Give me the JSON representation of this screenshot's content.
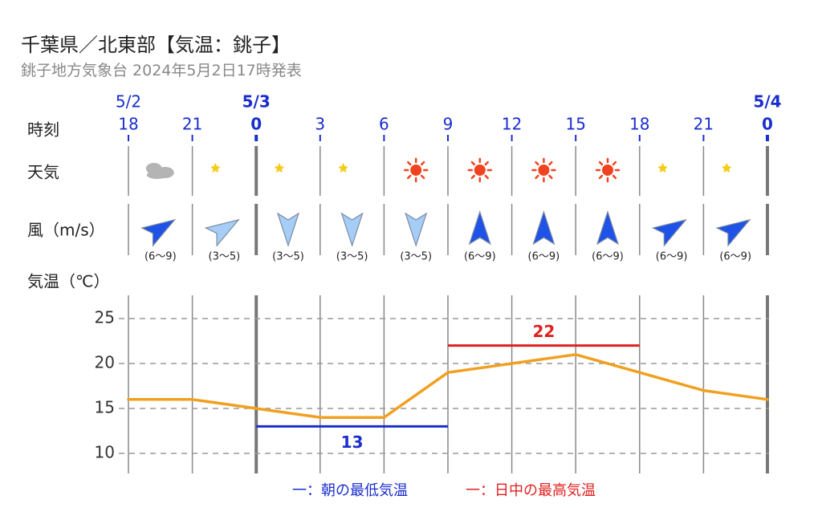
{
  "header": {
    "title": "千葉県／北東部【気温：銚子】",
    "subtitle": "銚子地方気象台 2024年5月2日17時発表"
  },
  "rows": {
    "time": "時刻",
    "weather": "天気",
    "wind": "風（m/s）",
    "temp": "気温（℃）"
  },
  "dates": [
    {
      "label": "5/2",
      "col": 0,
      "bold": false
    },
    {
      "label": "5/3",
      "col": 2,
      "bold": true
    },
    {
      "label": "5/4",
      "col": 10,
      "bold": true
    }
  ],
  "times": [
    "18",
    "21",
    "0",
    "3",
    "6",
    "9",
    "12",
    "15",
    "18",
    "21",
    "0"
  ],
  "day_boundaries": [
    2,
    10
  ],
  "weather": [
    "cloudy-icon",
    "moon-icon",
    "moon-icon",
    "moon-icon",
    "sun-icon",
    "sun-icon",
    "sun-icon",
    "sun-icon",
    "moon-icon",
    "moon-icon"
  ],
  "wind": [
    {
      "dir": "northeast",
      "speed": "(6～9)",
      "strength": "strong"
    },
    {
      "dir": "northeast",
      "speed": "(3～5)",
      "strength": "weak"
    },
    {
      "dir": "south",
      "speed": "(3～5)",
      "strength": "weak"
    },
    {
      "dir": "south",
      "speed": "(3～5)",
      "strength": "weak"
    },
    {
      "dir": "south",
      "speed": "(3～5)",
      "strength": "weak"
    },
    {
      "dir": "north",
      "speed": "(6～9)",
      "strength": "strong"
    },
    {
      "dir": "north",
      "speed": "(6～9)",
      "strength": "strong"
    },
    {
      "dir": "north",
      "speed": "(6～9)",
      "strength": "strong"
    },
    {
      "dir": "northeast",
      "speed": "(6～9)",
      "strength": "strong"
    },
    {
      "dir": "northeast",
      "speed": "(6～9)",
      "strength": "strong"
    }
  ],
  "colors": {
    "temp_line": "#f0a020",
    "min_line": "#1a2ecc",
    "max_line": "#e02020",
    "date_bold": "#1a2ecc",
    "wind_strong": "#1f52e6",
    "wind_weak": "#a6cdf5",
    "sun": "#f04420",
    "moon": "#f5cc1a",
    "cloud": "#b4b4b4"
  },
  "chart_data": {
    "type": "line",
    "x": [
      "18",
      "21",
      "0",
      "3",
      "6",
      "9",
      "12",
      "15",
      "18",
      "21",
      "0"
    ],
    "series": [
      {
        "values": [
          16,
          16,
          15,
          14,
          14,
          19,
          20,
          21,
          19,
          17,
          16
        ]
      }
    ],
    "min_temp": {
      "value": 13,
      "label": "13",
      "from_index": 2,
      "to_index": 5
    },
    "max_temp": {
      "value": 22,
      "label": "22",
      "from_index": 5,
      "to_index": 8
    },
    "yticks": [
      "25",
      "20",
      "15",
      "10"
    ],
    "ylim": [
      8,
      27
    ],
    "grid": true,
    "legend": [
      {
        "label": "一：朝の最低気温",
        "color": "#1a2ecc"
      },
      {
        "label": "一：日中の最高気温",
        "color": "#e02020"
      }
    ],
    "legend_position": "bottom-center"
  }
}
